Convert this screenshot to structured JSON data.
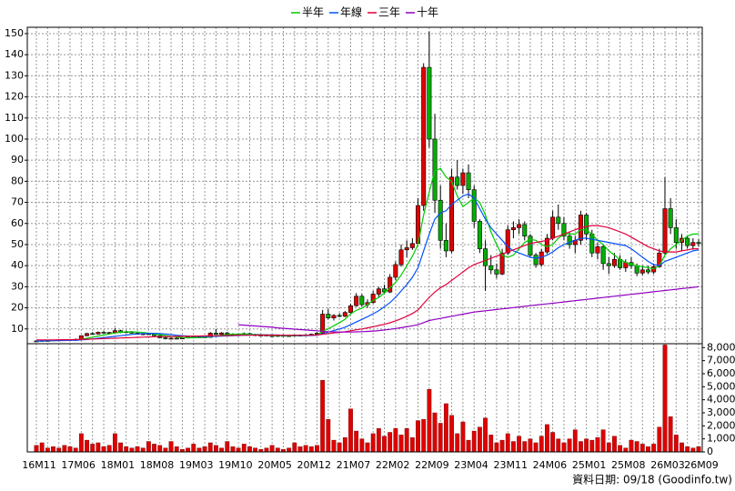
{
  "chart_data": [
    {
      "type": "candlestick",
      "grid": true,
      "legend": "top",
      "up_color": "#e00000",
      "down_color": "#00b000",
      "categories": [
        "16M11",
        null,
        null,
        null,
        null,
        null,
        null,
        "17M06",
        null,
        null,
        null,
        null,
        null,
        null,
        "18M01",
        null,
        null,
        null,
        null,
        null,
        null,
        "18M08",
        null,
        null,
        null,
        null,
        null,
        null,
        "19M03",
        null,
        null,
        null,
        null,
        null,
        null,
        "19M10",
        null,
        null,
        null,
        null,
        null,
        null,
        "20M05",
        null,
        null,
        null,
        null,
        null,
        null,
        "20M12",
        null,
        null,
        null,
        null,
        null,
        null,
        "21M07",
        null,
        null,
        null,
        null,
        null,
        null,
        "22M02",
        null,
        null,
        null,
        null,
        null,
        null,
        "22M09",
        null,
        null,
        null,
        null,
        null,
        null,
        "23M04",
        null,
        null,
        null,
        null,
        null,
        null,
        "23M11",
        null,
        null,
        null,
        null,
        null,
        null,
        "24M06",
        null,
        null,
        null,
        null,
        null,
        null,
        "25M01",
        null,
        null,
        null,
        null,
        null,
        null,
        "25M08",
        null,
        null,
        null,
        null,
        null,
        null,
        "26M03",
        null,
        null,
        null,
        null,
        null,
        "26M09"
      ],
      "open": [
        4.0,
        4.3,
        4.5,
        4.4,
        4.8,
        4.7,
        4.9,
        5.0,
        5.0,
        6.8,
        7.8,
        7.6,
        8.4,
        8.1,
        8.3,
        9.2,
        8.5,
        8.7,
        8.0,
        7.5,
        7.7,
        7.6,
        6.8,
        5.8,
        5.4,
        5.6,
        5.5,
        5.7,
        6.3,
        6.0,
        6.2,
        6.0,
        8.0,
        7.4,
        8.1,
        7.6,
        7.2,
        7.5,
        7.8,
        7.3,
        6.9,
        7.1,
        6.8,
        6.6,
        6.9,
        6.7,
        6.8,
        7.0,
        6.8,
        7.2,
        7.5,
        8.0,
        17.0,
        15.2,
        16.4,
        16.0,
        17.8,
        21.0,
        25.5,
        21.5,
        22.5,
        26.5,
        29.0,
        27.5,
        34.5,
        40.5,
        47.5,
        48.5,
        50.5,
        68.5,
        134,
        100,
        71,
        52,
        47,
        82,
        78,
        84,
        76,
        61,
        48,
        40,
        38,
        36,
        46,
        57,
        58,
        59.5,
        54,
        45,
        40.5,
        46.5,
        53,
        63,
        60,
        54,
        50,
        52,
        64,
        55,
        46,
        49,
        41,
        40,
        43,
        39,
        41.5,
        40,
        36.5,
        38,
        37,
        39.5,
        46,
        67,
        58,
        51,
        53,
        49.5,
        51
      ],
      "high": [
        4.6,
        4.8,
        4.7,
        4.9,
        5.1,
        5.0,
        5.2,
        5.5,
        7.0,
        8.2,
        8.5,
        8.8,
        9.0,
        8.6,
        10.5,
        9.6,
        9.2,
        9.0,
        8.4,
        8.0,
        8.1,
        7.9,
        7.0,
        6.2,
        5.9,
        6.0,
        5.9,
        6.5,
        6.8,
        6.4,
        6.6,
        8.5,
        10.0,
        8.5,
        8.6,
        8.0,
        7.8,
        8.3,
        8.2,
        7.7,
        7.4,
        7.4,
        7.2,
        7.0,
        7.3,
        7.1,
        7.3,
        7.4,
        7.5,
        7.8,
        8.5,
        19.0,
        19.5,
        17.0,
        17.5,
        18.5,
        22.0,
        27.0,
        26.5,
        24.0,
        28.0,
        30.0,
        31.0,
        36.0,
        42.0,
        50.0,
        52.0,
        53.0,
        72.0,
        136,
        151,
        112,
        78,
        60,
        86,
        90,
        86,
        88,
        78,
        62,
        52,
        45,
        41,
        48,
        59,
        61,
        62,
        61,
        55,
        46,
        48,
        55,
        66,
        69,
        63,
        56,
        54,
        66,
        65,
        57,
        51,
        50,
        44,
        46,
        45,
        43,
        44,
        41,
        40,
        40,
        41,
        48,
        82,
        72,
        62,
        55,
        54,
        53,
        52.5
      ],
      "low": [
        3.8,
        4.1,
        4.2,
        4.3,
        4.5,
        4.4,
        4.6,
        4.6,
        4.9,
        6.5,
        7.2,
        7.3,
        7.9,
        7.6,
        8.0,
        8.0,
        8.1,
        7.8,
        7.2,
        7.0,
        7.3,
        6.5,
        5.5,
        5.0,
        5.1,
        5.2,
        5.2,
        5.5,
        5.9,
        5.6,
        5.8,
        5.9,
        7.2,
        7.0,
        7.4,
        6.9,
        6.8,
        7.1,
        7.2,
        6.6,
        6.5,
        6.7,
        6.4,
        6.2,
        6.5,
        6.3,
        6.5,
        6.6,
        6.6,
        6.9,
        7.2,
        7.8,
        14.5,
        14.0,
        15.5,
        15.6,
        17.0,
        20.5,
        20.5,
        20.0,
        22.0,
        25.0,
        26.5,
        27.0,
        33.0,
        39.5,
        44.0,
        47.5,
        50.0,
        66.0,
        96,
        65,
        48,
        44,
        46,
        76,
        74,
        72,
        58,
        46,
        28,
        36,
        34,
        35.5,
        45,
        53,
        55,
        52,
        44,
        39,
        39.5,
        45.5,
        52,
        57,
        52,
        48,
        46,
        50,
        52,
        44,
        43,
        38,
        36,
        39,
        38,
        37,
        38.5,
        35,
        35.5,
        36,
        36,
        39,
        45,
        55,
        48,
        47,
        48,
        47.5,
        49
      ],
      "close": [
        4.3,
        4.5,
        4.4,
        4.8,
        4.7,
        4.9,
        5.0,
        4.8,
        6.8,
        7.8,
        7.6,
        8.4,
        8.1,
        8.3,
        9.2,
        8.5,
        8.7,
        8.0,
        7.5,
        7.7,
        7.6,
        6.8,
        5.8,
        5.4,
        5.6,
        5.5,
        5.7,
        6.3,
        6.0,
        6.2,
        6.0,
        8.0,
        7.4,
        8.1,
        7.6,
        7.2,
        7.5,
        7.8,
        7.3,
        6.9,
        7.1,
        6.8,
        6.6,
        6.9,
        6.7,
        6.8,
        7.0,
        6.8,
        7.2,
        7.5,
        8.0,
        17.0,
        15.2,
        16.4,
        16.0,
        17.8,
        21.0,
        25.5,
        21.5,
        22.5,
        26.5,
        29.0,
        27.5,
        34.5,
        40.5,
        47.5,
        48.5,
        50.5,
        68.5,
        134,
        100,
        71,
        52,
        47,
        82,
        78,
        84,
        76,
        61,
        48,
        40,
        38,
        36,
        46,
        57,
        58,
        59.5,
        54,
        45,
        40.5,
        46.5,
        53,
        63,
        60,
        54,
        50,
        52,
        64,
        55,
        46,
        49,
        41,
        40,
        43,
        39,
        41.5,
        40,
        36.5,
        38,
        37,
        39.5,
        46,
        67,
        58,
        51,
        53,
        49.5,
        51,
        50.5
      ],
      "series": [
        {
          "name": "半年",
          "color": "#00cc00",
          "values": [
            4.2,
            4.3,
            4.4,
            4.5,
            4.6,
            4.6,
            4.7,
            4.8,
            5.1,
            5.6,
            6.1,
            6.6,
            7.1,
            7.6,
            8.1,
            8.4,
            8.6,
            8.6,
            8.5,
            8.3,
            8.0,
            7.7,
            7.3,
            6.9,
            6.5,
            6.2,
            5.9,
            5.8,
            5.8,
            5.9,
            6.0,
            6.3,
            6.7,
            7.0,
            7.3,
            7.5,
            7.6,
            7.6,
            7.5,
            7.4,
            7.3,
            7.2,
            7.0,
            6.9,
            6.8,
            6.8,
            6.8,
            6.8,
            6.9,
            7.0,
            7.2,
            8.8,
            10.1,
            11.5,
            13.0,
            14.6,
            17.2,
            18.8,
            19.8,
            21.5,
            23.5,
            24.9,
            27.0,
            29.5,
            32.0,
            35.5,
            40.0,
            44.5,
            50.0,
            64.0,
            75.0,
            85.0,
            86.0,
            82.0,
            80.0,
            73.0,
            68.0,
            70.0,
            72.0,
            70.0,
            64.0,
            56.0,
            50.0,
            45.0,
            44.0,
            45.0,
            48.0,
            51.0,
            52.5,
            52.0,
            50.0,
            49.0,
            50.0,
            53.0,
            55.0,
            55.0,
            55.0,
            57.0,
            57.0,
            55.0,
            52.0,
            50.0,
            47.0,
            45.0,
            43.0,
            41.5,
            40.5,
            40.0,
            39.5,
            39.0,
            38.5,
            40.0,
            45.0,
            48.0,
            50.0,
            52.0,
            54.0,
            55.0,
            55.0
          ]
        },
        {
          "name": "年線",
          "color": "#0050ff",
          "values": [
            4.3,
            4.3,
            4.4,
            4.4,
            4.5,
            4.5,
            4.6,
            4.6,
            4.8,
            5.0,
            5.3,
            5.6,
            5.9,
            6.2,
            6.5,
            6.8,
            7.1,
            7.4,
            7.6,
            7.8,
            7.9,
            7.9,
            7.8,
            7.6,
            7.3,
            7.0,
            6.8,
            6.6,
            6.5,
            6.4,
            6.4,
            6.5,
            6.5,
            6.6,
            6.7,
            6.8,
            6.9,
            7.0,
            7.1,
            7.2,
            7.2,
            7.2,
            7.2,
            7.1,
            7.0,
            7.0,
            7.0,
            6.9,
            6.9,
            6.9,
            7.0,
            7.8,
            8.5,
            9.2,
            10.0,
            10.8,
            12.0,
            13.3,
            14.5,
            15.8,
            17.2,
            18.6,
            20.5,
            22.5,
            25.0,
            28.0,
            31.0,
            34.5,
            39.0,
            47.0,
            55,
            62,
            65,
            66,
            69,
            71,
            73,
            74,
            72,
            67,
            62,
            58,
            55,
            52,
            49,
            47,
            46,
            45,
            44,
            43.5,
            44,
            45,
            46.5,
            48.5,
            50,
            51,
            52,
            53,
            53,
            52.5,
            52,
            51.5,
            51,
            50.5,
            50,
            49.5,
            48,
            46,
            44,
            42,
            40.5,
            40,
            42.0,
            43.0,
            44.0,
            45.0,
            46.0,
            47.0,
            47.5
          ]
        },
        {
          "name": "三年",
          "color": "#e0003c",
          "values": [
            4.8,
            4.8,
            4.8,
            4.8,
            4.9,
            4.9,
            4.9,
            5.0,
            5.0,
            5.1,
            5.2,
            5.3,
            5.4,
            5.5,
            5.6,
            5.7,
            5.8,
            5.9,
            6.0,
            6.1,
            6.2,
            6.3,
            6.3,
            6.4,
            6.4,
            6.5,
            6.5,
            6.5,
            6.6,
            6.6,
            6.7,
            6.7,
            6.8,
            6.8,
            6.9,
            6.9,
            7.0,
            7.0,
            7.0,
            7.1,
            7.1,
            7.1,
            7.1,
            7.1,
            7.0,
            7.0,
            7.0,
            7.0,
            7.0,
            7.0,
            7.1,
            7.5,
            7.8,
            8.1,
            8.4,
            8.7,
            9.1,
            9.6,
            10.0,
            10.5,
            11.0,
            11.6,
            12.2,
            12.9,
            13.8,
            14.8,
            16.0,
            17.3,
            19.0,
            22.0,
            25,
            27.5,
            29.5,
            31,
            33,
            35,
            37,
            39,
            40.5,
            41.5,
            42.5,
            43.5,
            44.5,
            45.5,
            46.5,
            47.5,
            48.5,
            49.5,
            50.5,
            51,
            51.5,
            52,
            53,
            54,
            55,
            56,
            57,
            58,
            58.5,
            59,
            59,
            58.5,
            58,
            57,
            56,
            55,
            53.5,
            52,
            50.5,
            49,
            48,
            47,
            46.5,
            46.5,
            46.5,
            47,
            47.5,
            48,
            48
          ]
        },
        {
          "name": "十年",
          "color": "#9000c0",
          "values": [
            null,
            null,
            null,
            null,
            null,
            null,
            null,
            null,
            null,
            null,
            null,
            null,
            null,
            null,
            null,
            null,
            null,
            null,
            null,
            null,
            null,
            null,
            null,
            null,
            null,
            null,
            null,
            null,
            null,
            null,
            null,
            null,
            null,
            null,
            null,
            null,
            12.0,
            11.8,
            11.6,
            11.4,
            11.2,
            11.0,
            10.8,
            10.5,
            10.3,
            10.1,
            9.9,
            9.7,
            9.5,
            9.3,
            9.1,
            8.9,
            8.7,
            8.6,
            8.5,
            8.5,
            8.5,
            8.6,
            8.7,
            8.8,
            9.0,
            9.2,
            9.5,
            9.8,
            10.2,
            10.6,
            11.0,
            11.5,
            12.0,
            13.0,
            14.0,
            14.5,
            15.0,
            15.5,
            16.0,
            16.5,
            17.0,
            17.5,
            18.0,
            18.3,
            18.6,
            18.9,
            19.2,
            19.5,
            19.8,
            20.1,
            20.4,
            20.7,
            21.0,
            21.3,
            21.6,
            21.9,
            22.2,
            22.5,
            22.8,
            23.1,
            23.4,
            23.7,
            24.0,
            24.3,
            24.6,
            24.9,
            25.2,
            25.5,
            25.8,
            26.1,
            26.4,
            26.7,
            27.0,
            27.3,
            27.6,
            27.9,
            28.2,
            28.5,
            28.8,
            29.1,
            29.4,
            29.7,
            30.0
          ]
        }
      ],
      "ylim": [
        3,
        153
      ],
      "yticks": [
        10,
        20,
        30,
        40,
        50,
        60,
        70,
        80,
        90,
        100,
        110,
        120,
        130,
        140,
        150
      ]
    },
    {
      "type": "bar",
      "color": "#e00000",
      "ylim": [
        0,
        8300
      ],
      "yticks": [
        0,
        {
          "value": 1000,
          "label": "1,000"
        },
        {
          "value": 2000,
          "label": "2,000"
        },
        {
          "value": 3000,
          "label": "3,000"
        },
        {
          "value": 4000,
          "label": "4,000"
        },
        {
          "value": 5000,
          "label": "5,000"
        },
        {
          "value": 6000,
          "label": "6,000"
        },
        {
          "value": 7000,
          "label": "7,000"
        },
        {
          "value": 8000,
          "label": "8,000"
        }
      ],
      "values": [
        500,
        700,
        300,
        400,
        300,
        500,
        400,
        300,
        1400,
        900,
        600,
        700,
        400,
        500,
        1400,
        700,
        400,
        300,
        400,
        300,
        800,
        600,
        500,
        300,
        800,
        400,
        200,
        300,
        600,
        300,
        400,
        700,
        500,
        300,
        800,
        400,
        300,
        600,
        400,
        300,
        200,
        300,
        500,
        300,
        200,
        300,
        700,
        400,
        500,
        400,
        500,
        5500,
        2500,
        900,
        700,
        1100,
        3300,
        1600,
        1000,
        700,
        1400,
        1800,
        1200,
        1500,
        1800,
        1300,
        1800,
        1100,
        2400,
        2500,
        4800,
        3000,
        2200,
        3700,
        2800,
        1400,
        2300,
        900,
        1600,
        1900,
        2600,
        1300,
        700,
        900,
        1400,
        800,
        1200,
        800,
        1000,
        700,
        1200,
        2100,
        1500,
        1000,
        700,
        1000,
        1700,
        800,
        1000,
        900,
        1100,
        1700,
        700,
        1200,
        500,
        300,
        900,
        800,
        600,
        400,
        600,
        1900,
        8200,
        2700,
        1300,
        700,
        400,
        300,
        400
      ]
    }
  ],
  "footer": "資料日期: 09/18 (Goodinfo.tw)"
}
